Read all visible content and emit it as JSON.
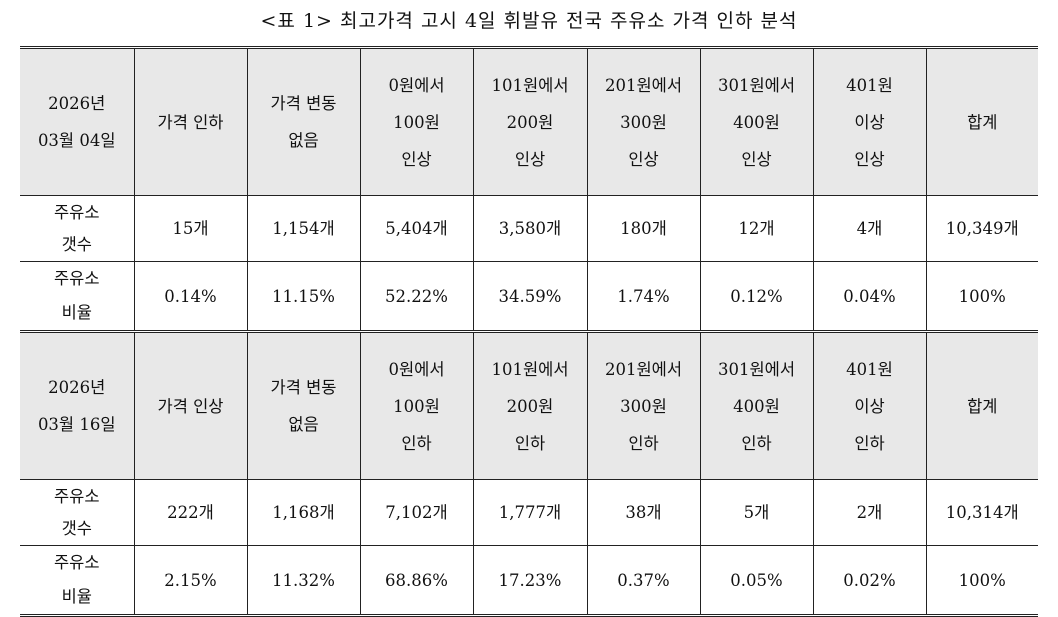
{
  "caption": "<표 1> 최고가격 고시 4일 휘발유 전국 주유소 가격 인하 분석",
  "sections": [
    {
      "date_line1": "2026년",
      "date_line2": "03월 04일",
      "headers": [
        {
          "l1": "가격 인하",
          "l2": "",
          "l3": ""
        },
        {
          "l1": "가격 변동",
          "l2": "없음",
          "l3": ""
        },
        {
          "l1": "0원에서",
          "l2": "100원",
          "l3": "인상"
        },
        {
          "l1": "101원에서",
          "l2": "200원",
          "l3": "인상"
        },
        {
          "l1": "201원에서",
          "l2": "300원",
          "l3": "인상"
        },
        {
          "l1": "301원에서",
          "l2": "400원",
          "l3": "인상"
        },
        {
          "l1": "401원",
          "l2": "이상",
          "l3": "인상"
        },
        {
          "l1": "합계",
          "l2": "",
          "l3": ""
        }
      ],
      "count_label_1": "주유소",
      "count_label_2": "갯수",
      "counts": [
        "15개",
        "1,154개",
        "5,404개",
        "3,580개",
        "180개",
        "12개",
        "4개",
        "10,349개"
      ],
      "ratio_label_1": "주유소",
      "ratio_label_2": "비율",
      "ratios": [
        "0.14%",
        "11.15%",
        "52.22%",
        "34.59%",
        "1.74%",
        "0.12%",
        "0.04%",
        "100%"
      ]
    },
    {
      "date_line1": "2026년",
      "date_line2": "03월 16일",
      "headers": [
        {
          "l1": "가격 인상",
          "l2": "",
          "l3": ""
        },
        {
          "l1": "가격 변동",
          "l2": "없음",
          "l3": ""
        },
        {
          "l1": "0원에서",
          "l2": "100원",
          "l3": "인하"
        },
        {
          "l1": "101원에서",
          "l2": "200원",
          "l3": "인하"
        },
        {
          "l1": "201원에서",
          "l2": "300원",
          "l3": "인하"
        },
        {
          "l1": "301원에서",
          "l2": "400원",
          "l3": "인하"
        },
        {
          "l1": "401원",
          "l2": "이상",
          "l3": "인하"
        },
        {
          "l1": "합계",
          "l2": "",
          "l3": ""
        }
      ],
      "count_label_1": "주유소",
      "count_label_2": "갯수",
      "counts": [
        "222개",
        "1,168개",
        "7,102개",
        "1,777개",
        "38개",
        "5개",
        "2개",
        "10,314개"
      ],
      "ratio_label_1": "주유소",
      "ratio_label_2": "비율",
      "ratios": [
        "2.15%",
        "11.32%",
        "68.86%",
        "17.23%",
        "0.37%",
        "0.05%",
        "0.02%",
        "100%"
      ]
    }
  ]
}
